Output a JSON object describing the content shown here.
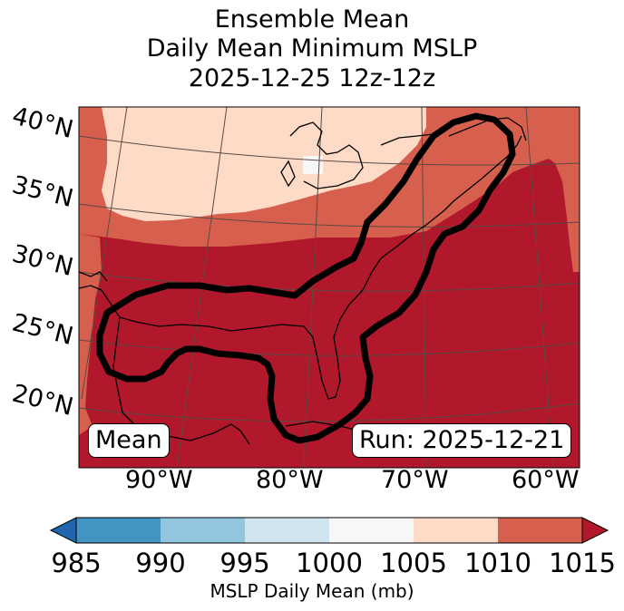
{
  "title": {
    "line1": "Ensemble Mean",
    "line2": "Daily Mean Minimum MSLP",
    "line3": "2025-12-25 12z-12z"
  },
  "map": {
    "projection": "lambert-conformal",
    "lat_labels": [
      "40°N",
      "35°N",
      "30°N",
      "25°N",
      "20°N"
    ],
    "lon_labels": [
      "90°W",
      "80°W",
      "70°W",
      "60°W"
    ],
    "mean_label": "Mean",
    "run_label": "Run: 2025-12-21",
    "outline_color": "#000000",
    "land_outline_color": "#000000",
    "field_colors": {
      "1005-1010": "#fddbc7",
      "1010-1015": "#d6604d",
      "1015+": "#b2182b",
      "1000-1005": "#f7f7f7"
    }
  },
  "colorbar": {
    "label": "MSLP Daily Mean (mb)",
    "ticks": [
      "985",
      "990",
      "995",
      "1000",
      "1005",
      "1010",
      "1015"
    ],
    "under_color": "#2166ac",
    "over_color": "#b2182b",
    "bin_colors": [
      "#4393c3",
      "#92c5de",
      "#d1e5f0",
      "#f7f7f7",
      "#fddbc7",
      "#d6604d"
    ]
  }
}
